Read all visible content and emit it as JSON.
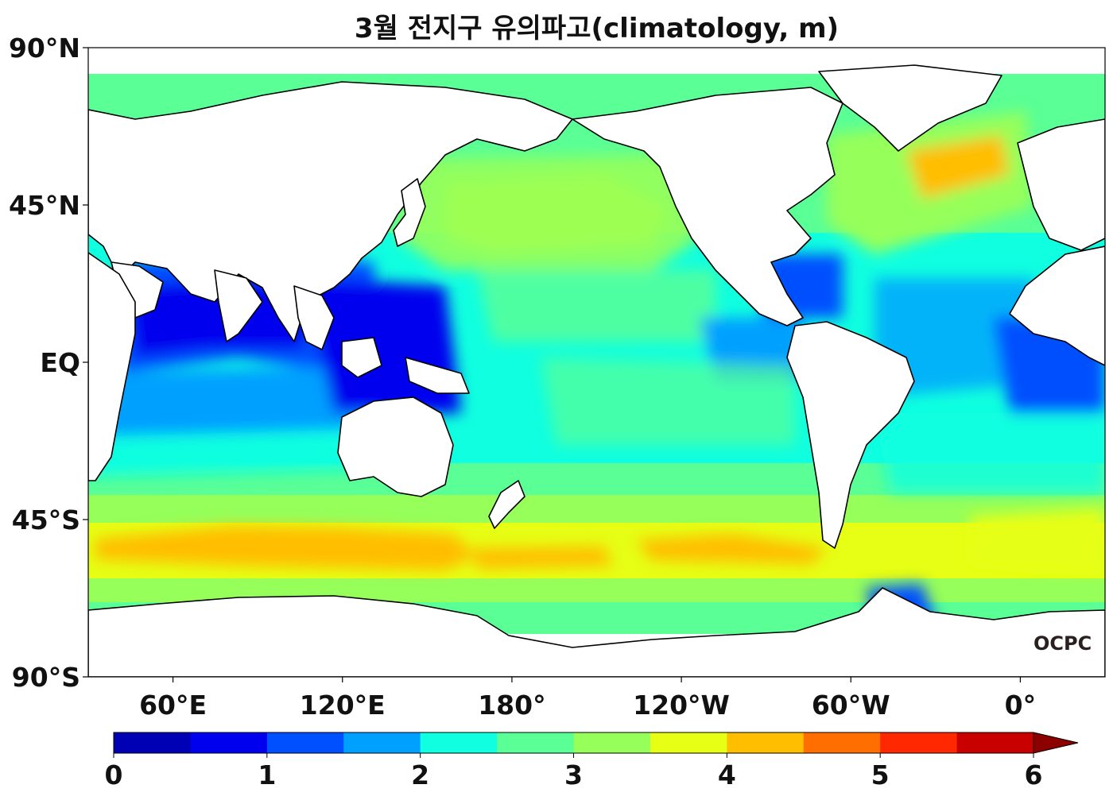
{
  "title": "3월 전지구 유의파고(climatology, m)",
  "logo": "OCPC",
  "chart_data": {
    "type": "heatmap",
    "variable": "significant wave height climatology (March)",
    "units": "m",
    "projection": "equirectangular, centered 180°",
    "lon_range": [
      30,
      390
    ],
    "lat_range": [
      -90,
      90
    ],
    "lat_ticks": [
      {
        "value": 90,
        "label": "90°N"
      },
      {
        "value": 45,
        "label": "45°N"
      },
      {
        "value": 0,
        "label": "EQ"
      },
      {
        "value": -45,
        "label": "45°S"
      },
      {
        "value": -90,
        "label": "90°S"
      }
    ],
    "lon_ticks": [
      {
        "value": 60,
        "label": "60°E"
      },
      {
        "value": 120,
        "label": "120°E"
      },
      {
        "value": 180,
        "label": "180°"
      },
      {
        "value": 240,
        "label": "120°W"
      },
      {
        "value": 300,
        "label": "60°W"
      },
      {
        "value": 360,
        "label": "0°"
      }
    ],
    "colorbar": {
      "min": 0,
      "max": 6,
      "step": 0.5,
      "extend": "max",
      "tick_labels": [
        "0",
        "1",
        "2",
        "3",
        "4",
        "5",
        "6"
      ],
      "colors": [
        "#0000b4",
        "#0000ee",
        "#0050ff",
        "#00a0ff",
        "#10ffe0",
        "#5aff96",
        "#96ff5a",
        "#e6ff14",
        "#ffbe00",
        "#ff6e00",
        "#ff2800",
        "#c80000",
        "#8c0000"
      ]
    }
  }
}
